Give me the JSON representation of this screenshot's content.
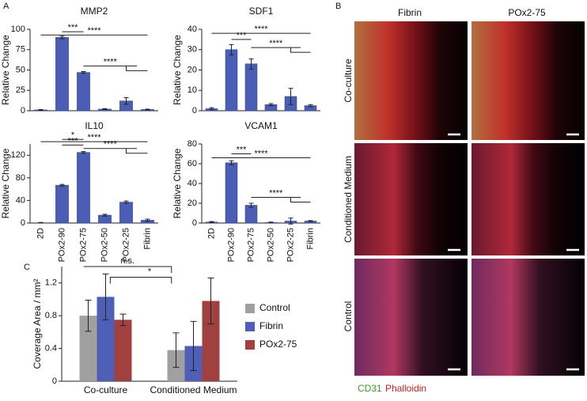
{
  "chart_data": [
    {
      "type": "bar",
      "title": "MMP2",
      "ylabel": "Relative Change",
      "categories": [
        null,
        null,
        null,
        null,
        null,
        null
      ],
      "values": [
        1,
        90,
        47,
        2,
        12,
        1.5
      ],
      "errors": [
        0.5,
        1.5,
        1,
        0.5,
        4,
        0.5
      ],
      "color": "#4a5eb5",
      "ylim": [
        0,
        100
      ],
      "yticks": [
        0,
        25,
        50,
        75,
        100
      ],
      "annotations": [
        "***",
        "****",
        "****"
      ]
    },
    {
      "type": "bar",
      "title": "SDF1",
      "ylabel": "Relative Change",
      "categories": [
        null,
        null,
        null,
        null,
        null,
        null
      ],
      "values": [
        1,
        30,
        23,
        3,
        7,
        2.5
      ],
      "errors": [
        0.5,
        2.5,
        2.5,
        0.5,
        4,
        0.5
      ],
      "color": "#4a5eb5",
      "ylim": [
        0,
        40
      ],
      "yticks": [
        0,
        10,
        20,
        30,
        40
      ],
      "annotations": [
        "***",
        "****",
        "****"
      ]
    },
    {
      "type": "bar",
      "title": "IL10",
      "ylabel": "Relative Change",
      "categories": [
        "2D",
        "POx2-90",
        "POx2-75",
        "POx2-50",
        "POx2-25",
        "Fibrin"
      ],
      "values": [
        0.5,
        67,
        125,
        14,
        37,
        5
      ],
      "errors": [
        0.5,
        1.5,
        1.5,
        1.5,
        2,
        2
      ],
      "color": "#4a5eb5",
      "ylim": [
        0,
        140
      ],
      "yticks": [
        0,
        40,
        80,
        120
      ],
      "annotations": [
        "*",
        "***",
        "****",
        "****"
      ]
    },
    {
      "type": "bar",
      "title": "VCAM1",
      "ylabel": "Relative Change",
      "categories": [
        "2D",
        "POx2-90",
        "POx2-75",
        "POx2-50",
        "POx2-25",
        "Fibrin"
      ],
      "values": [
        1,
        61,
        18,
        0.5,
        2,
        2
      ],
      "errors": [
        0.5,
        2,
        2,
        0.5,
        3,
        0.5
      ],
      "color": "#4a5eb5",
      "ylim": [
        0,
        80
      ],
      "yticks": [
        0,
        20,
        40,
        60,
        80
      ],
      "annotations": [
        "***",
        "****",
        "****"
      ]
    },
    {
      "type": "grouped_bar",
      "ylabel": "Coverage Area / mm²",
      "categories": [
        "Co-culture",
        "Conditioned Medium"
      ],
      "series": [
        {
          "name": "Control",
          "color": "#a0a0a0",
          "values": [
            0.8,
            0.38
          ],
          "errors": [
            0.19,
            0.21
          ]
        },
        {
          "name": "Fibrin",
          "color": "#4f5fb8",
          "values": [
            1.03,
            0.43
          ],
          "errors": [
            0.28,
            0.3
          ]
        },
        {
          "name": "POx2-75",
          "color": "#a0403f",
          "values": [
            0.75,
            0.98
          ],
          "errors": [
            0.07,
            0.28
          ]
        }
      ],
      "ylim": [
        0,
        1.4
      ],
      "yticks": [
        0,
        0.4,
        0.8,
        1.2
      ],
      "annotations": [
        "n.s.",
        "*"
      ]
    }
  ],
  "panels": [
    "A",
    "B",
    "C"
  ],
  "images": {
    "columns": [
      "Fibrin",
      "POx2-75"
    ],
    "rows": [
      "Co-culture",
      "Conditioned Medium",
      "Control"
    ],
    "stains": [
      "CD31",
      "Phalloidin"
    ]
  }
}
